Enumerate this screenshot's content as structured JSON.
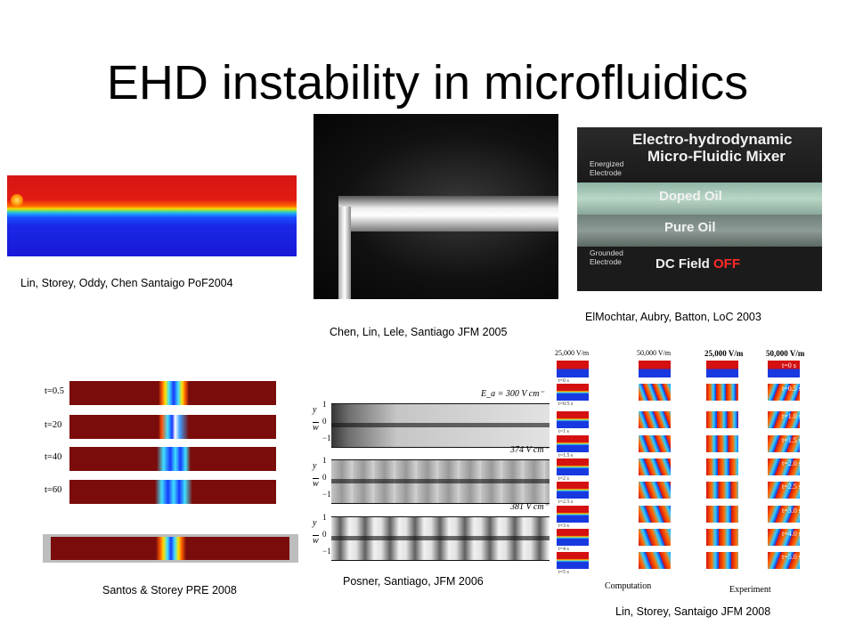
{
  "title": "EHD instability in microfluidics",
  "captions": {
    "p1": "Lin, Storey, Oddy, Chen Santaigo PoF2004",
    "p2": "Chen, Lin, Lele, Santiago JFM 2005",
    "p3": "ElMochtar, Aubry, Batton, LoC 2003",
    "p4": "Santos & Storey PRE 2008",
    "p5": "Posner, Santiago, JFM 2006",
    "p6": "Lin, Storey, Santaigo JFM 2008"
  },
  "mixer": {
    "title_line1": "Electro-hydrodynamic",
    "title_line2": "Micro-Fluidic Mixer",
    "energized1": "Energized",
    "energized2": "Electrode",
    "doped": "Doped Oil",
    "pure": "Pure Oil",
    "grounded1": "Grounded",
    "grounded2": "Electrode",
    "dc_field": "DC Field",
    "off": "OFF"
  },
  "santos": {
    "times": [
      "t=0.5",
      "t=20",
      "t=40",
      "t=60"
    ]
  },
  "posner": {
    "fields": [
      "E_a = 300 V cm⁻",
      "374 V cm⁻",
      "381 V cm⁻"
    ],
    "axis_y": "y",
    "axis_w": "w",
    "ticks": [
      "1",
      "0",
      "−1"
    ]
  },
  "lin": {
    "col_heads": [
      "25,000 V/m",
      "50,000 V/m",
      "25,000 V/m",
      "50,000 V/m"
    ],
    "comp_times": [
      "t=0 s",
      "t=0.5 s",
      "t=1 s",
      "t=1.5 s",
      "t=2 s",
      "t=2.5 s",
      "t=3 s",
      "t=4 s",
      "t=5 s"
    ],
    "exp_times": [
      "t=0 s",
      "t=0.5 s",
      "t=1.0 s",
      "t=1.5 s",
      "t=2.0 s",
      "t=2.5 s",
      "t=3.0 s",
      "t=4.0 s",
      "t=5.0 s"
    ],
    "computation": "Computation",
    "experiment": "Experiment"
  }
}
